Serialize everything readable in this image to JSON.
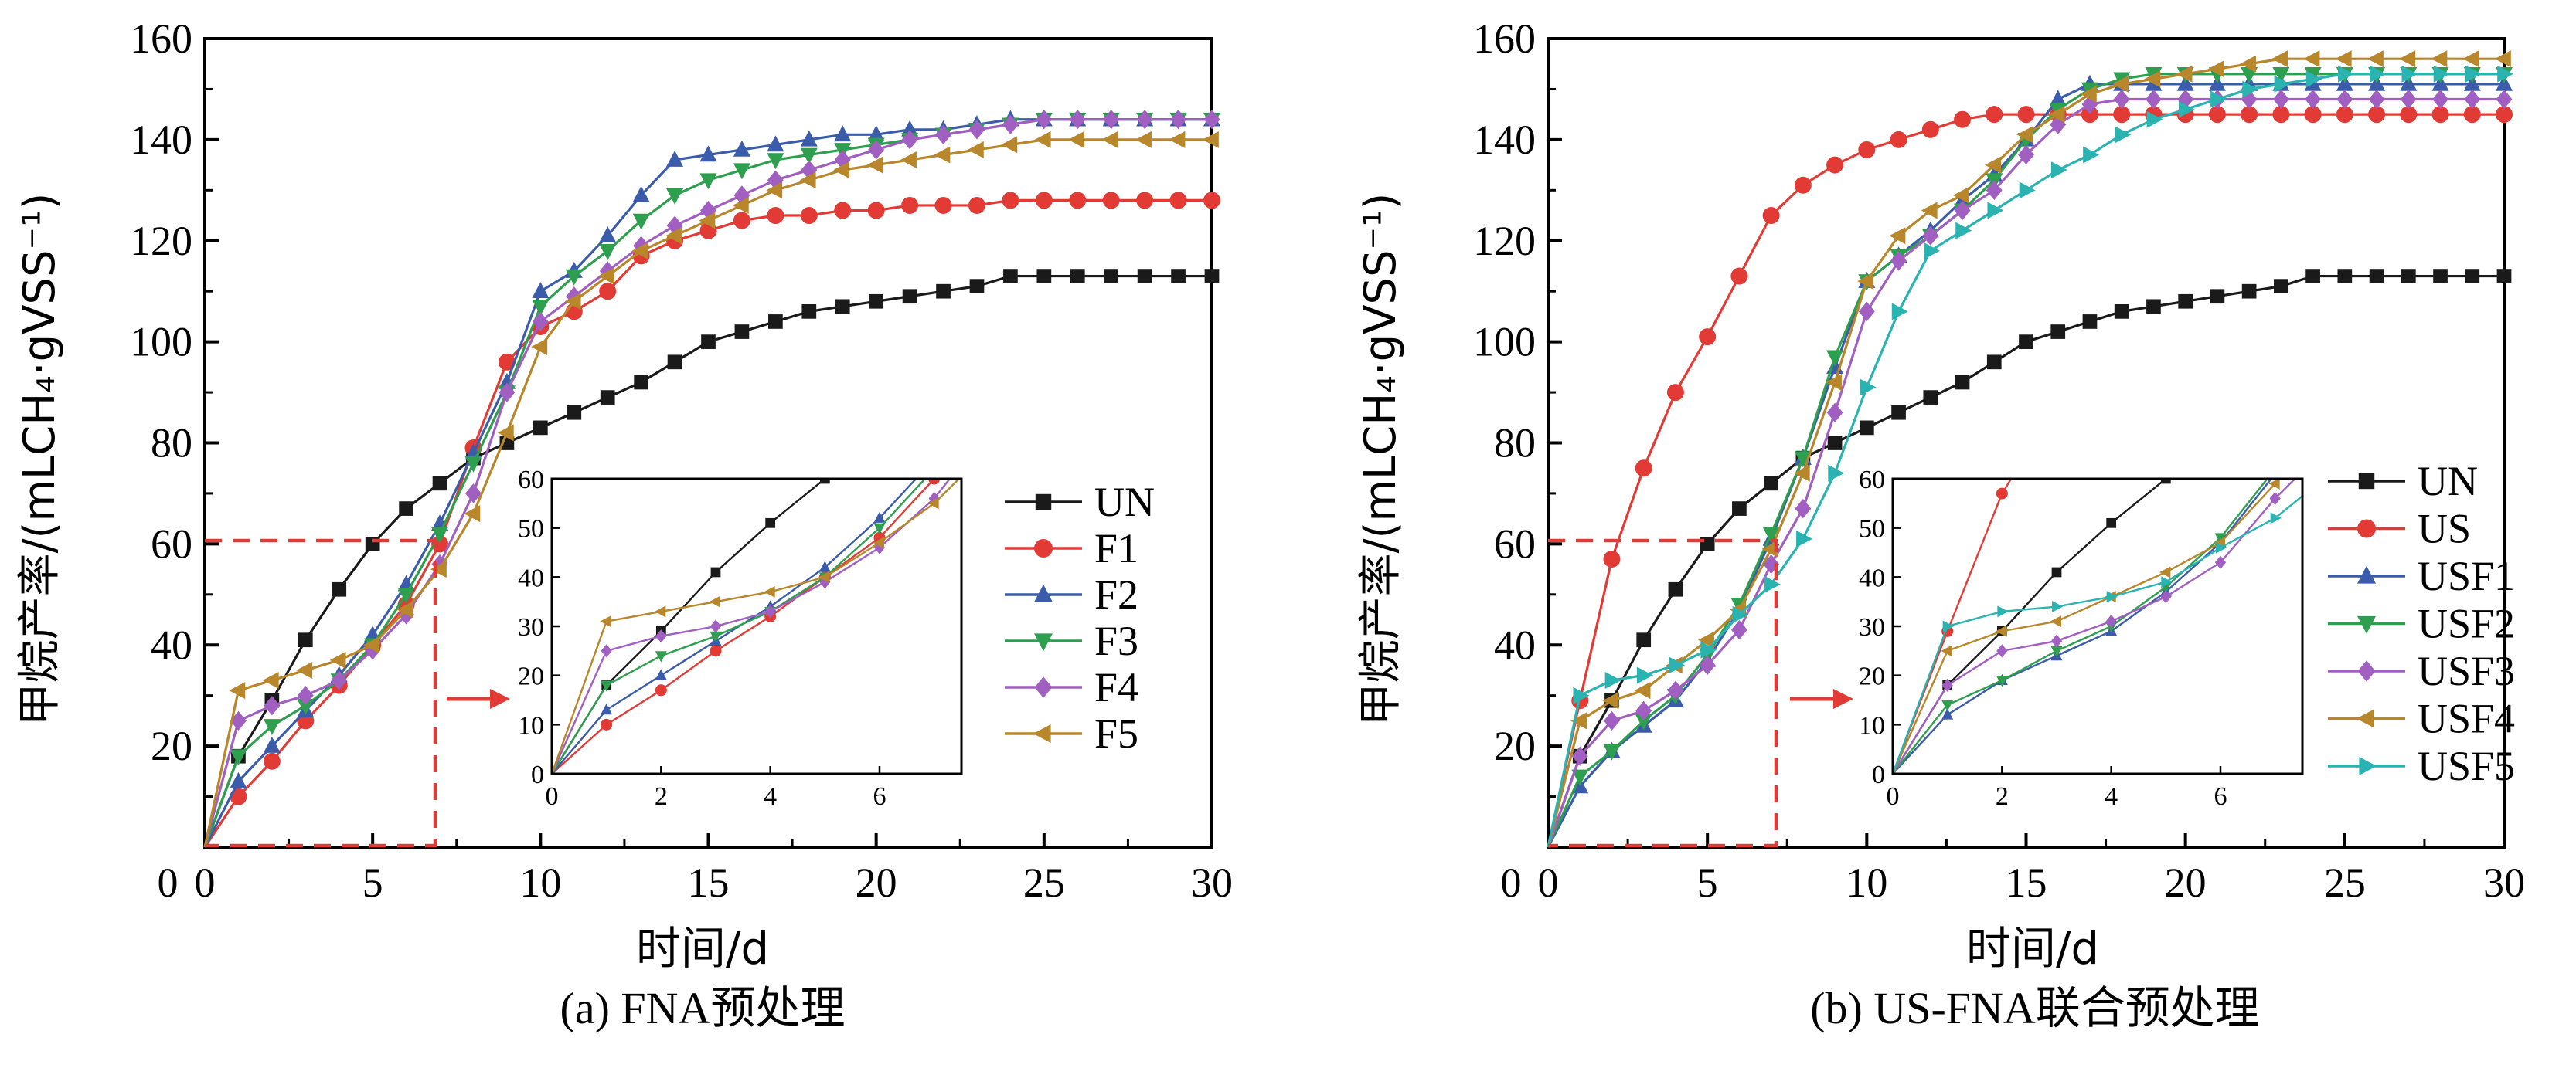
{
  "panels": [
    {
      "caption": "(a) FNA预处理",
      "chart_data": {
        "type": "line",
        "xlabel": "时间/d",
        "ylabel": "甲烷产率/(mLCH₄·gVSS⁻¹)",
        "xlim": [
          0,
          30
        ],
        "ylim": [
          0,
          160
        ],
        "xticks": [
          "0",
          "5",
          "10",
          "15",
          "20",
          "25",
          "30"
        ],
        "yticks": [
          "20",
          "40",
          "60",
          "80",
          "100",
          "120",
          "140",
          "160"
        ],
        "legend_position": "right",
        "series": [
          {
            "name": "UN",
            "color": "#1a1a1a",
            "marker": "square",
            "x": [
              0,
              1,
              2,
              3,
              4,
              5,
              6,
              7,
              8,
              9,
              10,
              11,
              12,
              13,
              14,
              15,
              16,
              17,
              18,
              19,
              20,
              21,
              22,
              23,
              24,
              25,
              26,
              27,
              28,
              29,
              30
            ],
            "values": [
              0,
              18,
              29,
              41,
              51,
              60,
              67,
              72,
              77,
              80,
              83,
              86,
              89,
              92,
              96,
              100,
              102,
              104,
              106,
              107,
              108,
              109,
              110,
              111,
              113,
              113,
              113,
              113,
              113,
              113,
              113
            ]
          },
          {
            "name": "F1",
            "color": "#e23b35",
            "marker": "circle",
            "x": [
              0,
              1,
              2,
              3,
              4,
              5,
              6,
              7,
              8,
              9,
              10,
              11,
              12,
              13,
              14,
              15,
              16,
              17,
              18,
              19,
              20,
              21,
              22,
              23,
              24,
              25,
              26,
              27,
              28,
              29,
              30
            ],
            "values": [
              0,
              10,
              17,
              25,
              32,
              40,
              48,
              60,
              79,
              96,
              103,
              106,
              110,
              117,
              120,
              122,
              124,
              125,
              125,
              126,
              126,
              127,
              127,
              127,
              128,
              128,
              128,
              128,
              128,
              128,
              128
            ]
          },
          {
            "name": "F2",
            "color": "#3b5bab",
            "marker": "triangle-up",
            "x": [
              0,
              1,
              2,
              3,
              4,
              5,
              6,
              7,
              8,
              9,
              10,
              11,
              12,
              13,
              14,
              15,
              16,
              17,
              18,
              19,
              20,
              21,
              22,
              23,
              24,
              25,
              26,
              27,
              28,
              29,
              30
            ],
            "values": [
              0,
              13,
              20,
              27,
              34,
              42,
              52,
              64,
              78,
              92,
              110,
              114,
              121,
              129,
              136,
              137,
              138,
              139,
              140,
              141,
              141,
              142,
              142,
              143,
              144,
              144,
              144,
              144,
              144,
              144,
              144
            ]
          },
          {
            "name": "F3",
            "color": "#2e9e4f",
            "marker": "triangle-down",
            "x": [
              0,
              1,
              2,
              3,
              4,
              5,
              6,
              7,
              8,
              9,
              10,
              11,
              12,
              13,
              14,
              15,
              16,
              17,
              18,
              19,
              20,
              21,
              22,
              23,
              24,
              25,
              26,
              27,
              28,
              29,
              30
            ],
            "values": [
              0,
              18,
              24,
              28,
              33,
              40,
              50,
              62,
              76,
              90,
              107,
              113,
              118,
              124,
              129,
              132,
              134,
              136,
              137,
              138,
              139,
              140,
              141,
              142,
              143,
              144,
              144,
              144,
              144,
              144,
              144
            ]
          },
          {
            "name": "F4",
            "color": "#a05fc1",
            "marker": "diamond",
            "x": [
              0,
              1,
              2,
              3,
              4,
              5,
              6,
              7,
              8,
              9,
              10,
              11,
              12,
              13,
              14,
              15,
              16,
              17,
              18,
              19,
              20,
              21,
              22,
              23,
              24,
              25,
              26,
              27,
              28,
              29,
              30
            ],
            "values": [
              0,
              25,
              28,
              30,
              33,
              39,
              46,
              56,
              70,
              90,
              104,
              109,
              114,
              119,
              123,
              126,
              129,
              132,
              134,
              136,
              138,
              140,
              141,
              142,
              143,
              144,
              144,
              144,
              144,
              144,
              144
            ]
          },
          {
            "name": "F5",
            "color": "#b8862b",
            "marker": "triangle-left",
            "x": [
              0,
              1,
              2,
              3,
              4,
              5,
              6,
              7,
              8,
              9,
              10,
              11,
              12,
              13,
              14,
              15,
              16,
              17,
              18,
              19,
              20,
              21,
              22,
              23,
              24,
              25,
              26,
              27,
              28,
              29,
              30
            ],
            "values": [
              0,
              31,
              33,
              35,
              37,
              40,
              47,
              55,
              66,
              82,
              99,
              108,
              113,
              118,
              121,
              124,
              127,
              130,
              132,
              134,
              135,
              136,
              137,
              138,
              139,
              140,
              140,
              140,
              140,
              140,
              140
            ]
          }
        ],
        "inset": {
          "xlim": [
            0,
            7.5
          ],
          "ylim": [
            0,
            60
          ],
          "xticks": [
            "0",
            "2",
            "4",
            "6"
          ],
          "yticks": [
            "0",
            "10",
            "20",
            "30",
            "40",
            "50",
            "60"
          ]
        }
      }
    },
    {
      "caption": "(b) US-FNA联合预处理",
      "chart_data": {
        "type": "line",
        "xlabel": "时间/d",
        "ylabel": "甲烷产率/(mLCH₄·gVSS⁻¹)",
        "xlim": [
          0,
          30
        ],
        "ylim": [
          0,
          160
        ],
        "xticks": [
          "0",
          "5",
          "10",
          "15",
          "20",
          "25",
          "30"
        ],
        "yticks": [
          "20",
          "40",
          "60",
          "80",
          "100",
          "120",
          "140",
          "160"
        ],
        "legend_position": "right",
        "series": [
          {
            "name": "UN",
            "color": "#1a1a1a",
            "marker": "square",
            "x": [
              0,
              1,
              2,
              3,
              4,
              5,
              6,
              7,
              8,
              9,
              10,
              11,
              12,
              13,
              14,
              15,
              16,
              17,
              18,
              19,
              20,
              21,
              22,
              23,
              24,
              25,
              26,
              27,
              28,
              29,
              30
            ],
            "values": [
              0,
              18,
              29,
              41,
              51,
              60,
              67,
              72,
              77,
              80,
              83,
              86,
              89,
              92,
              96,
              100,
              102,
              104,
              106,
              107,
              108,
              109,
              110,
              111,
              113,
              113,
              113,
              113,
              113,
              113,
              113
            ]
          },
          {
            "name": "US",
            "color": "#e23b35",
            "marker": "circle",
            "x": [
              0,
              1,
              2,
              3,
              4,
              5,
              6,
              7,
              8,
              9,
              10,
              11,
              12,
              13,
              14,
              15,
              16,
              17,
              18,
              19,
              20,
              21,
              22,
              23,
              24,
              25,
              26,
              27,
              28,
              29,
              30
            ],
            "values": [
              0,
              29,
              57,
              75,
              90,
              101,
              113,
              125,
              131,
              135,
              138,
              140,
              142,
              144,
              145,
              145,
              145,
              145,
              145,
              145,
              145,
              145,
              145,
              145,
              145,
              145,
              145,
              145,
              145,
              145,
              145
            ]
          },
          {
            "name": "USF1",
            "color": "#3b5bab",
            "marker": "triangle-up",
            "x": [
              0,
              1,
              2,
              3,
              4,
              5,
              6,
              7,
              8,
              9,
              10,
              11,
              12,
              13,
              14,
              15,
              16,
              17,
              18,
              19,
              20,
              21,
              22,
              23,
              24,
              25,
              26,
              27,
              28,
              29,
              30
            ],
            "values": [
              0,
              12,
              19,
              24,
              29,
              37,
              47,
              61,
              77,
              95,
              112,
              117,
              122,
              128,
              133,
              140,
              148,
              151,
              151,
              151,
              151,
              151,
              151,
              151,
              151,
              151,
              151,
              151,
              151,
              151,
              151
            ]
          },
          {
            "name": "USF2",
            "color": "#2e9e4f",
            "marker": "triangle-down",
            "x": [
              0,
              1,
              2,
              3,
              4,
              5,
              6,
              7,
              8,
              9,
              10,
              11,
              12,
              13,
              14,
              15,
              16,
              17,
              18,
              19,
              20,
              21,
              22,
              23,
              24,
              25,
              26,
              27,
              28,
              29,
              30
            ],
            "values": [
              0,
              14,
              19,
              25,
              30,
              38,
              48,
              62,
              77,
              97,
              112,
              117,
              121,
              126,
              132,
              140,
              146,
              150,
              152,
              153,
              153,
              153,
              153,
              153,
              153,
              153,
              153,
              153,
              153,
              153,
              153
            ]
          },
          {
            "name": "USF3",
            "color": "#a05fc1",
            "marker": "diamond",
            "x": [
              0,
              1,
              2,
              3,
              4,
              5,
              6,
              7,
              8,
              9,
              10,
              11,
              12,
              13,
              14,
              15,
              16,
              17,
              18,
              19,
              20,
              21,
              22,
              23,
              24,
              25,
              26,
              27,
              28,
              29,
              30
            ],
            "values": [
              0,
              18,
              25,
              27,
              31,
              36,
              43,
              56,
              67,
              86,
              106,
              116,
              121,
              126,
              130,
              137,
              143,
              147,
              148,
              148,
              148,
              148,
              148,
              148,
              148,
              148,
              148,
              148,
              148,
              148,
              148
            ]
          },
          {
            "name": "USF4",
            "color": "#b8862b",
            "marker": "triangle-left",
            "x": [
              0,
              1,
              2,
              3,
              4,
              5,
              6,
              7,
              8,
              9,
              10,
              11,
              12,
              13,
              14,
              15,
              16,
              17,
              18,
              19,
              20,
              21,
              22,
              23,
              24,
              25,
              26,
              27,
              28,
              29,
              30
            ],
            "values": [
              0,
              25,
              29,
              31,
              36,
              41,
              47,
              59,
              74,
              92,
              112,
              121,
              126,
              129,
              135,
              141,
              145,
              149,
              151,
              152,
              153,
              154,
              155,
              156,
              156,
              156,
              156,
              156,
              156,
              156,
              156
            ]
          },
          {
            "name": "USF5",
            "color": "#2ab3b0",
            "marker": "triangle-right",
            "x": [
              0,
              1,
              2,
              3,
              4,
              5,
              6,
              7,
              8,
              9,
              10,
              11,
              12,
              13,
              14,
              15,
              16,
              17,
              18,
              19,
              20,
              21,
              22,
              23,
              24,
              25,
              26,
              27,
              28,
              29,
              30
            ],
            "values": [
              0,
              30,
              33,
              34,
              36,
              39,
              46,
              52,
              61,
              74,
              91,
              106,
              118,
              122,
              126,
              130,
              134,
              137,
              141,
              144,
              146,
              148,
              150,
              151,
              152,
              153,
              153,
              153,
              153,
              153,
              153
            ]
          }
        ],
        "inset": {
          "xlim": [
            0,
            7.5
          ],
          "ylim": [
            0,
            60
          ],
          "xticks": [
            "0",
            "2",
            "4",
            "6"
          ],
          "yticks": [
            "0",
            "10",
            "20",
            "30",
            "40",
            "50",
            "60"
          ]
        }
      }
    }
  ]
}
